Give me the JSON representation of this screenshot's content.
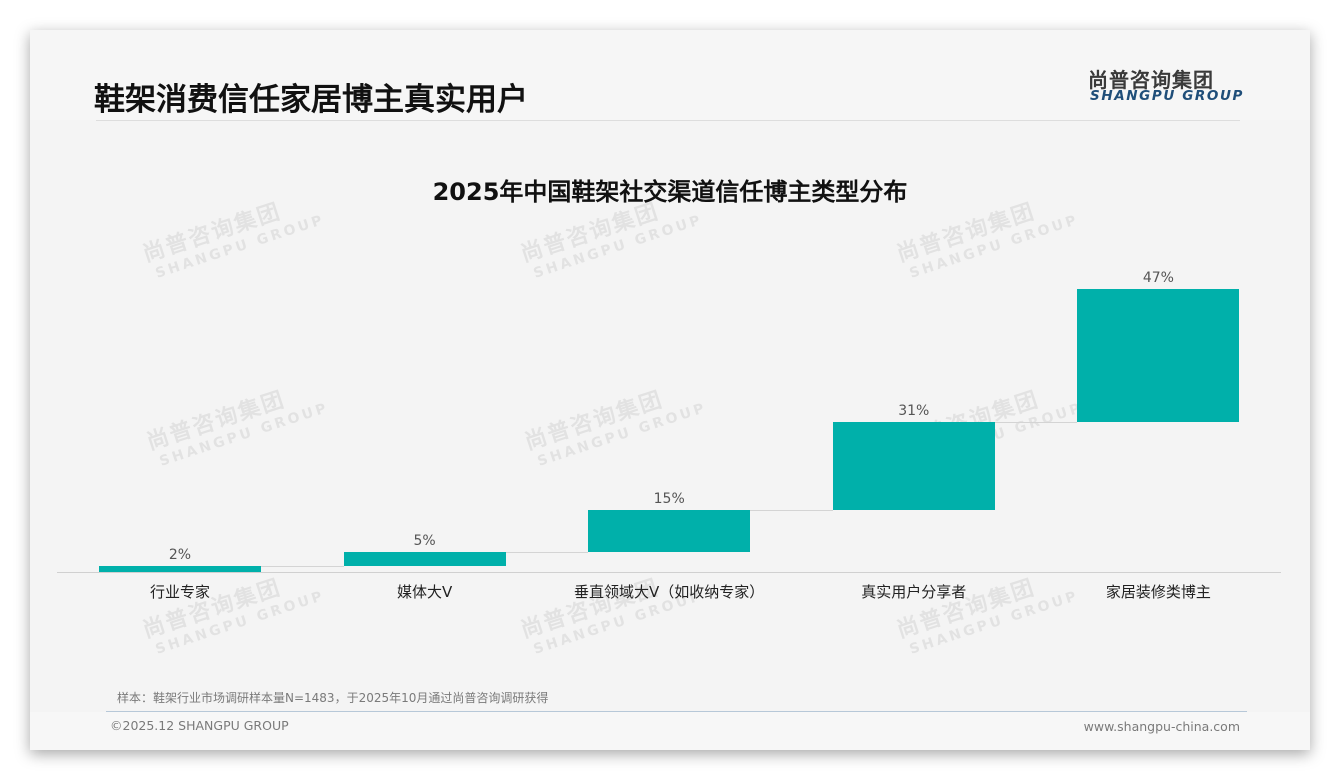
{
  "header": {
    "title": "鞋架消费信任家居博主真实用户",
    "logo_cn": "尚普咨询集团",
    "logo_en": "SHANGPU GROUP"
  },
  "watermark": {
    "cn": "尚普咨询集团",
    "en": "SHANGPU GROUP"
  },
  "colors": {
    "bar": "#00b0aa",
    "logo_en": "#1f4e79",
    "background": "#f4f4f4"
  },
  "chart_data": {
    "type": "bar",
    "subtype": "waterfall",
    "title": "2025年中国鞋架社交渠道信任博主类型分布",
    "xlabel": "",
    "ylabel": "",
    "categories": [
      "行业专家",
      "媒体大V",
      "垂直领域大V（如收纳专家）",
      "真实用户分享者",
      "家居装修类博主"
    ],
    "values": [
      2,
      5,
      15,
      31,
      47
    ],
    "value_labels": [
      "2%",
      "5%",
      "15%",
      "31%",
      "47%"
    ],
    "cumulative_bases": [
      0,
      2,
      7,
      22,
      53
    ],
    "ylim": [
      0,
      100
    ],
    "grid": false,
    "legend": null,
    "axis_visible": false
  },
  "footer": {
    "note": "样本：鞋架行业市场调研样本量N=1483，于2025年10月通过尚普咨询调研获得",
    "copyright": "©2025.12 SHANGPU GROUP",
    "website": "www.shangpu-china.com"
  }
}
